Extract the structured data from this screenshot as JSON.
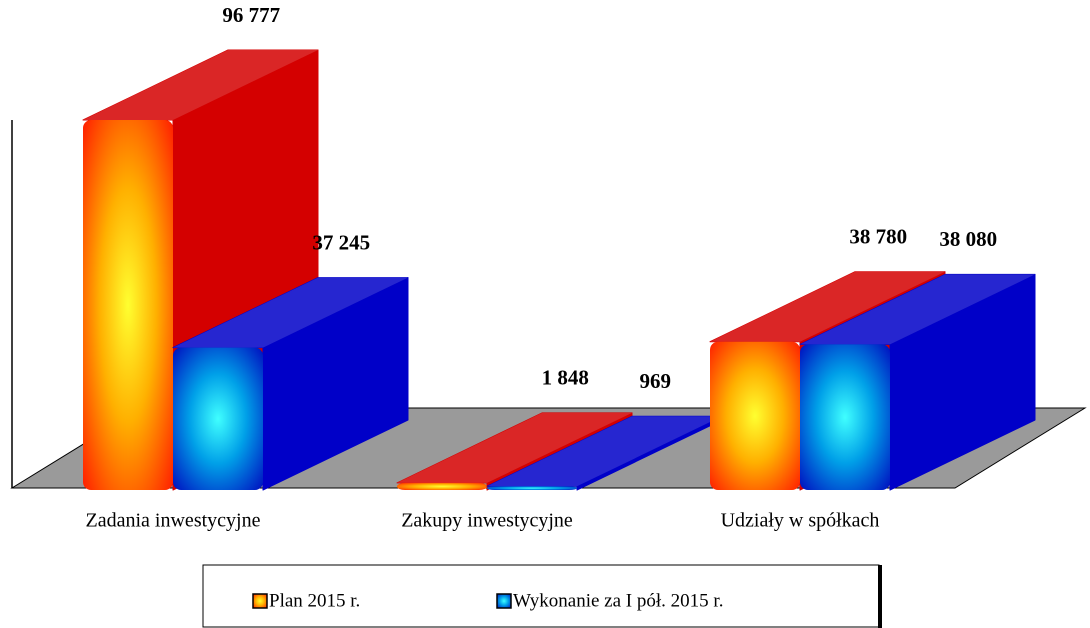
{
  "chart_data": {
    "type": "bar3d",
    "categories": [
      "Zadania inwestycyjne",
      "Zakupy inwestycyjne",
      "Udziały w spółkach"
    ],
    "series": [
      {
        "name": "Plan 2015 r.",
        "color": "#d40000",
        "values": [
          96777,
          1848,
          38780
        ],
        "value_labels": [
          "96 777",
          "1 848",
          "38 780"
        ]
      },
      {
        "name": "Wykonanie za I pół. 2015 r.",
        "color": "#0000c8",
        "values": [
          37245,
          969,
          38080
        ],
        "value_labels": [
          "37 245",
          "969",
          "38 080"
        ]
      }
    ],
    "legend": "bottom"
  }
}
